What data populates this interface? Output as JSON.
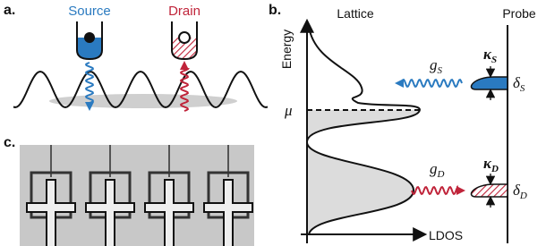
{
  "panel_a": {
    "label": "a.",
    "source": "Source",
    "drain": "Drain"
  },
  "panel_b": {
    "label": "b.",
    "lattice": "Lattice",
    "probe": "Probe",
    "y_axis": "Energy",
    "x_axis": "LDOS",
    "mu": "μ",
    "g_s": {
      "symbol": "g",
      "sub": "S"
    },
    "kappa_s": {
      "symbol": "κ",
      "sub": "S"
    },
    "delta_s": {
      "symbol": "δ",
      "sub": "S"
    },
    "g_d": {
      "symbol": "g",
      "sub": "D"
    },
    "kappa_d": {
      "symbol": "κ",
      "sub": "D"
    },
    "delta_d": {
      "symbol": "δ",
      "sub": "D"
    }
  },
  "panel_c": {
    "label": "c."
  }
}
